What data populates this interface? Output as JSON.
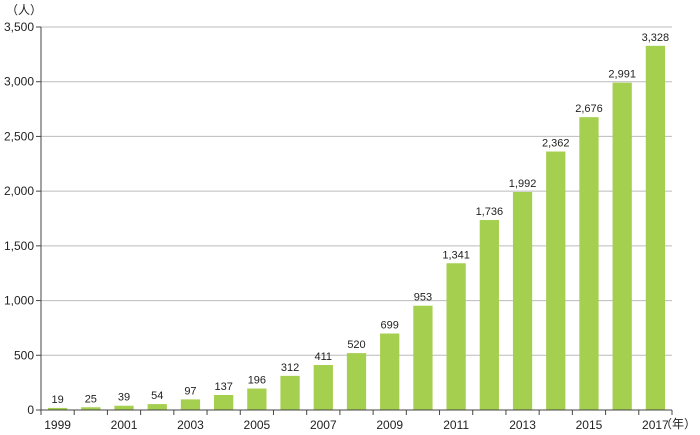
{
  "chart_data": {
    "type": "bar",
    "title": "",
    "y_unit": "（人）",
    "x_unit": "（年）",
    "categories": [
      "1999",
      "2000",
      "2001",
      "2002",
      "2003",
      "2004",
      "2005",
      "2006",
      "2007",
      "2008",
      "2009",
      "2010",
      "2011",
      "2012",
      "2013",
      "2014",
      "2015",
      "2016",
      "2017"
    ],
    "x_tick_labels": [
      "1999",
      "2001",
      "2003",
      "2005",
      "2007",
      "2009",
      "2011",
      "2013",
      "2015",
      "2017"
    ],
    "values": [
      19,
      25,
      39,
      54,
      97,
      137,
      196,
      312,
      411,
      520,
      699,
      953,
      1341,
      1736,
      1992,
      2362,
      2676,
      2991,
      3328
    ],
    "value_labels": [
      "19",
      "25",
      "39",
      "54",
      "97",
      "137",
      "196",
      "312",
      "411",
      "520",
      "699",
      "953",
      "1,341",
      "1,736",
      "1,992",
      "2,362",
      "2,676",
      "2,991",
      "3,328"
    ],
    "ylim": [
      0,
      3500
    ],
    "y_ticks": [
      0,
      500,
      1000,
      1500,
      2000,
      2500,
      3000,
      3500
    ],
    "y_tick_labels": [
      "0",
      "500",
      "1,000",
      "1,500",
      "2,000",
      "2,500",
      "3,000",
      "3,500"
    ],
    "grid": true,
    "bar_color": "#a5cf4e",
    "grid_color": "#bbbbbb",
    "axis_color": "#444444"
  }
}
